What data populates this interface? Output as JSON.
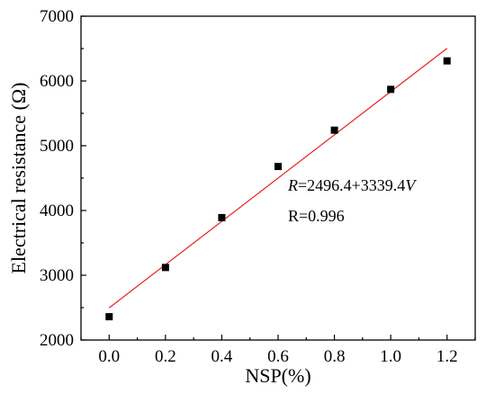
{
  "chart_data": {
    "type": "scatter",
    "title": "",
    "xlabel": "NSP(%)",
    "ylabel": "Electrical resistance (Ω)",
    "xlim": [
      -0.1,
      1.3
    ],
    "ylim": [
      2000,
      7000
    ],
    "x_ticks": [
      "0.0",
      "0.2",
      "0.4",
      "0.6",
      "0.8",
      "1.0",
      "1.2"
    ],
    "y_ticks": [
      "2000",
      "3000",
      "4000",
      "5000",
      "6000",
      "7000"
    ],
    "grid": false,
    "legend": "none",
    "series": [
      {
        "marker": "square",
        "color": "#000000",
        "x": [
          0.0,
          0.2,
          0.4,
          0.6,
          0.8,
          1.0,
          1.2
        ],
        "y": [
          2360,
          3120,
          3890,
          4680,
          5240,
          5870,
          6310
        ]
      }
    ],
    "fit_line": {
      "color": "#e8201e",
      "intercept": 2496.4,
      "slope": 3339.4,
      "x_range": [
        0.0,
        1.2
      ]
    },
    "annotations": {
      "equation": {
        "r": "R",
        "mid": "=2496.4+3339.4",
        "v": "V"
      },
      "correlation": "R=0.996"
    }
  }
}
